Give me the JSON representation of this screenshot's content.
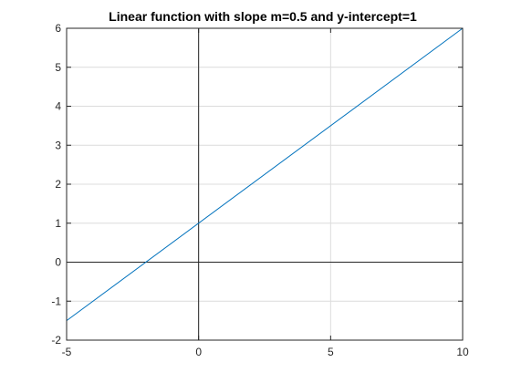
{
  "chart_data": {
    "type": "line",
    "title": "Linear function with slope m=0.5 and y-intercept=1",
    "xlabel": "",
    "ylabel": "",
    "xlim": [
      -5,
      10
    ],
    "ylim": [
      -2,
      6
    ],
    "x_ticks": [
      -5,
      0,
      5,
      10
    ],
    "y_ticks": [
      -2,
      -1,
      0,
      1,
      2,
      3,
      4,
      5,
      6
    ],
    "grid": true,
    "zero_lines": true,
    "series": [
      {
        "color": "#0072bd",
        "x": [
          -5,
          10
        ],
        "y": [
          -1.5,
          6
        ]
      }
    ]
  }
}
